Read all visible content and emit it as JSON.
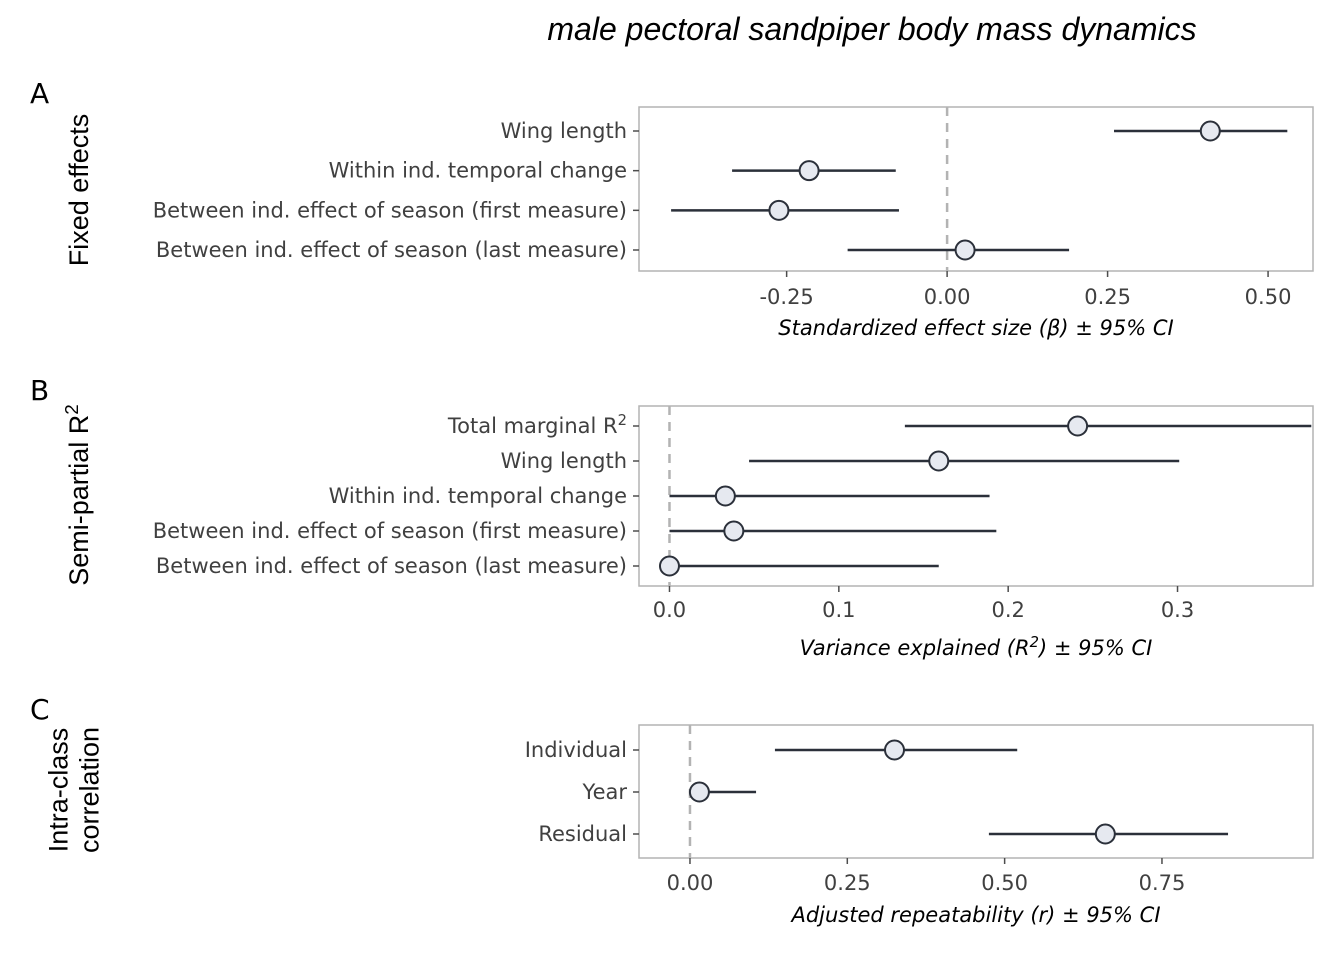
{
  "figure": {
    "title": "male pectoral sandpiper body mass dynamics"
  },
  "chart_data": [
    {
      "type": "scatter",
      "tag": "A",
      "ylabel": "Fixed effects",
      "xlabel": "Standardized effect size (β) ± 95% CI",
      "xlim": [
        -0.48,
        0.57
      ],
      "ticks": [
        -0.25,
        0.0,
        0.25,
        0.5
      ],
      "tick_labels": [
        "-0.25",
        "0.00",
        "0.25",
        "0.50"
      ],
      "reference_line": 0,
      "grid": false,
      "categories": [
        "Wing length",
        "Within ind. temporal change",
        "Between ind. effect of season (first measure)",
        "Between ind. effect of season (last measure)"
      ],
      "estimate": [
        0.41,
        -0.215,
        -0.262,
        0.028
      ],
      "lower": [
        0.26,
        -0.335,
        -0.43,
        -0.155
      ],
      "upper": [
        0.53,
        -0.08,
        -0.075,
        0.19
      ]
    },
    {
      "type": "scatter",
      "tag": "B",
      "ylabel": "Semi-partial R",
      "ylabel_sup": "2",
      "xlabel": "Variance explained (R",
      "xlabel_sup": "2",
      "xlabel_tail": ") ± 95% CI",
      "xlim": [
        -0.018,
        0.38
      ],
      "ticks": [
        0.0,
        0.1,
        0.2,
        0.3
      ],
      "tick_labels": [
        "0.0",
        "0.1",
        "0.2",
        "0.3"
      ],
      "reference_line": 0,
      "grid": false,
      "categories": [
        "Total marginal R",
        "Wing length",
        "Within ind. temporal change",
        "Between ind. effect of season (first measure)",
        "Between ind. effect of season (last measure)"
      ],
      "category_sup": [
        "2",
        "",
        "",
        "",
        ""
      ],
      "estimate": [
        0.241,
        0.159,
        0.033,
        0.038,
        0.0
      ],
      "lower": [
        0.139,
        0.047,
        0.0,
        0.0,
        0.0
      ],
      "upper": [
        0.379,
        0.301,
        0.189,
        0.193,
        0.159
      ]
    },
    {
      "type": "scatter",
      "tag": "C",
      "ylabel": "Intra-class",
      "ylabel_line2": "correlation",
      "xlabel": "Adjusted repeatability (r) ± 95% CI",
      "xlim": [
        -0.081,
        0.99
      ],
      "ticks": [
        0.0,
        0.25,
        0.5,
        0.75
      ],
      "tick_labels": [
        "0.00",
        "0.25",
        "0.50",
        "0.75"
      ],
      "reference_line": 0,
      "grid": false,
      "categories": [
        "Individual",
        "Year",
        "Residual"
      ],
      "estimate": [
        0.325,
        0.015,
        0.66
      ],
      "lower": [
        0.135,
        0.0,
        0.475
      ],
      "upper": [
        0.52,
        0.105,
        0.855
      ]
    }
  ]
}
